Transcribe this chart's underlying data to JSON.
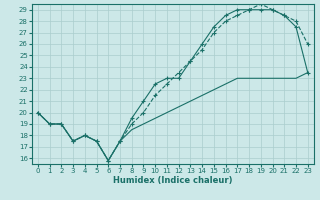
{
  "xlabel": "Humidex (Indice chaleur)",
  "bg_color": "#cce8e8",
  "grid_color": "#aacece",
  "line_color": "#1a7068",
  "xlim": [
    -0.5,
    23.5
  ],
  "ylim": [
    15.5,
    29.5
  ],
  "xticks": [
    0,
    1,
    2,
    3,
    4,
    5,
    6,
    7,
    8,
    9,
    10,
    11,
    12,
    13,
    14,
    15,
    16,
    17,
    18,
    19,
    20,
    21,
    22,
    23
  ],
  "yticks": [
    16,
    17,
    18,
    19,
    20,
    21,
    22,
    23,
    24,
    25,
    26,
    27,
    28,
    29
  ],
  "line1_x": [
    0,
    1,
    2,
    3,
    4,
    5,
    6,
    7,
    8,
    9,
    10,
    11,
    12,
    13,
    14,
    15,
    16,
    17,
    18,
    19,
    20,
    21,
    22,
    23
  ],
  "line1_y": [
    20.0,
    19.0,
    19.0,
    17.5,
    18.0,
    17.5,
    15.8,
    17.5,
    18.5,
    19.0,
    19.5,
    20.0,
    20.5,
    21.0,
    21.5,
    22.0,
    22.5,
    23.0,
    23.0,
    23.0,
    23.0,
    23.0,
    23.0,
    23.5
  ],
  "line2_x": [
    0,
    1,
    2,
    3,
    4,
    5,
    6,
    7,
    8,
    9,
    10,
    11,
    12,
    13,
    14,
    15,
    16,
    17,
    18,
    19,
    20,
    21,
    22,
    23
  ],
  "line2_y": [
    20.0,
    19.0,
    19.0,
    17.5,
    18.0,
    17.5,
    15.8,
    17.5,
    19.5,
    21.0,
    22.5,
    23.0,
    23.0,
    24.5,
    26.0,
    27.5,
    28.5,
    29.0,
    29.0,
    29.0,
    29.0,
    28.5,
    27.5,
    23.5
  ],
  "line3_x": [
    0,
    1,
    2,
    3,
    4,
    5,
    6,
    7,
    8,
    9,
    10,
    11,
    12,
    13,
    14,
    15,
    16,
    17,
    18,
    19,
    20,
    21,
    22,
    23
  ],
  "line3_y": [
    20.0,
    19.0,
    19.0,
    17.5,
    18.0,
    17.5,
    15.8,
    17.5,
    19.0,
    20.0,
    21.5,
    22.5,
    23.5,
    24.5,
    25.5,
    27.0,
    28.0,
    28.5,
    29.0,
    29.5,
    29.0,
    28.5,
    28.0,
    26.0
  ]
}
